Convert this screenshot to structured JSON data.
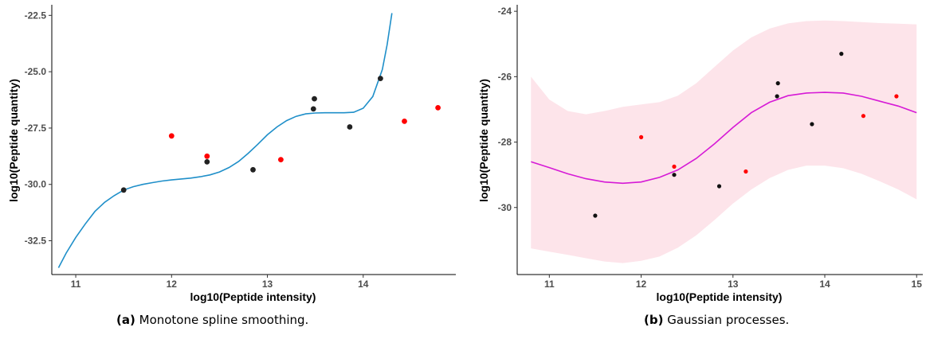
{
  "chart_data": [
    {
      "type": "scatter",
      "caption_label": "(a)",
      "caption_text": "Monotone spline smoothing.",
      "xlabel": "log10(Peptide intensity)",
      "ylabel": "log10(Peptide quantity)",
      "xlim": [
        10.75,
        14.95
      ],
      "ylim": [
        -34.0,
        -22.1
      ],
      "x_ticks": [
        11,
        12,
        13,
        14
      ],
      "x_tick_labels": [
        "11",
        "12",
        "13",
        "14"
      ],
      "y_ticks": [
        -32.5,
        -30.0,
        -27.5,
        -25.0,
        -22.5
      ],
      "y_tick_labels": [
        "-32.5",
        "-30.0",
        "-27.5",
        "-25.0",
        "-22.5"
      ],
      "grid": false,
      "series": [
        {
          "color": "#222222",
          "points": [
            [
              11.5,
              -30.25
            ],
            [
              12.37,
              -29.0
            ],
            [
              12.85,
              -29.35
            ],
            [
              13.48,
              -26.65
            ],
            [
              13.49,
              -26.2
            ],
            [
              13.86,
              -27.45
            ],
            [
              14.18,
              -25.3
            ]
          ]
        },
        {
          "color": "#ff0000",
          "points": [
            [
              12.0,
              -27.85
            ],
            [
              12.37,
              -28.75
            ],
            [
              13.14,
              -28.9
            ],
            [
              14.43,
              -27.2
            ],
            [
              14.78,
              -26.6
            ]
          ]
        },
        {
          "color": "#1f8fc9",
          "kind": "line",
          "points": [
            [
              10.82,
              -33.7
            ],
            [
              10.9,
              -33.05
            ],
            [
              11.0,
              -32.35
            ],
            [
              11.1,
              -31.75
            ],
            [
              11.2,
              -31.2
            ],
            [
              11.3,
              -30.8
            ],
            [
              11.4,
              -30.5
            ],
            [
              11.5,
              -30.25
            ],
            [
              11.6,
              -30.1
            ],
            [
              11.7,
              -30.0
            ],
            [
              11.8,
              -29.92
            ],
            [
              11.9,
              -29.85
            ],
            [
              12.0,
              -29.8
            ],
            [
              12.1,
              -29.76
            ],
            [
              12.2,
              -29.72
            ],
            [
              12.3,
              -29.66
            ],
            [
              12.4,
              -29.58
            ],
            [
              12.5,
              -29.45
            ],
            [
              12.6,
              -29.25
            ],
            [
              12.7,
              -28.98
            ],
            [
              12.8,
              -28.62
            ],
            [
              12.9,
              -28.22
            ],
            [
              13.0,
              -27.8
            ],
            [
              13.1,
              -27.45
            ],
            [
              13.2,
              -27.17
            ],
            [
              13.3,
              -26.98
            ],
            [
              13.4,
              -26.87
            ],
            [
              13.5,
              -26.83
            ],
            [
              13.6,
              -26.82
            ],
            [
              13.7,
              -26.82
            ],
            [
              13.8,
              -26.82
            ],
            [
              13.9,
              -26.8
            ],
            [
              14.0,
              -26.62
            ],
            [
              14.1,
              -26.1
            ],
            [
              14.2,
              -24.9
            ],
            [
              14.25,
              -23.8
            ],
            [
              14.3,
              -22.4
            ]
          ]
        }
      ]
    },
    {
      "type": "scatter",
      "caption_label": "(b)",
      "caption_text": "Gaussian processes.",
      "xlabel": "log10(Peptide intensity)",
      "ylabel": "log10(Peptide quantity)",
      "xlim": [
        10.65,
        15.05
      ],
      "ylim": [
        -32.05,
        -23.85
      ],
      "x_ticks": [
        11,
        12,
        13,
        14,
        15
      ],
      "x_tick_labels": [
        "11",
        "12",
        "13",
        "14",
        "15"
      ],
      "y_ticks": [
        -30,
        -28,
        -26,
        -24
      ],
      "y_tick_labels": [
        "-30",
        "-28",
        "-26",
        "-24"
      ],
      "grid": false,
      "series": [
        {
          "color": "#111111",
          "points": [
            [
              11.5,
              -30.25
            ],
            [
              12.36,
              -29.0
            ],
            [
              12.85,
              -29.35
            ],
            [
              13.48,
              -26.6
            ],
            [
              13.49,
              -26.2
            ],
            [
              13.86,
              -27.45
            ],
            [
              14.18,
              -25.3
            ]
          ]
        },
        {
          "color": "#ff0000",
          "points": [
            [
              12.0,
              -27.85
            ],
            [
              12.36,
              -28.75
            ],
            [
              13.14,
              -28.9
            ],
            [
              14.42,
              -27.2
            ],
            [
              14.78,
              -26.6
            ]
          ]
        },
        {
          "color": "#d61ad6",
          "kind": "line",
          "points": [
            [
              10.8,
              -28.6
            ],
            [
              11.0,
              -28.78
            ],
            [
              11.2,
              -28.97
            ],
            [
              11.4,
              -29.12
            ],
            [
              11.6,
              -29.22
            ],
            [
              11.8,
              -29.26
            ],
            [
              12.0,
              -29.22
            ],
            [
              12.2,
              -29.08
            ],
            [
              12.4,
              -28.85
            ],
            [
              12.6,
              -28.5
            ],
            [
              12.8,
              -28.05
            ],
            [
              13.0,
              -27.55
            ],
            [
              13.2,
              -27.1
            ],
            [
              13.4,
              -26.78
            ],
            [
              13.6,
              -26.58
            ],
            [
              13.8,
              -26.5
            ],
            [
              14.0,
              -26.48
            ],
            [
              14.2,
              -26.5
            ],
            [
              14.4,
              -26.6
            ],
            [
              14.6,
              -26.75
            ],
            [
              14.8,
              -26.9
            ],
            [
              15.0,
              -27.1
            ]
          ]
        },
        {
          "color": "#fde4ea",
          "kind": "band",
          "points": [
            [
              10.8,
              -26.0,
              -31.25
            ],
            [
              11.0,
              -26.7,
              -31.35
            ],
            [
              11.2,
              -27.05,
              -31.45
            ],
            [
              11.4,
              -27.15,
              -31.55
            ],
            [
              11.6,
              -27.05,
              -31.65
            ],
            [
              11.8,
              -26.92,
              -31.7
            ],
            [
              12.0,
              -26.85,
              -31.63
            ],
            [
              12.2,
              -26.78,
              -31.5
            ],
            [
              12.4,
              -26.58,
              -31.23
            ],
            [
              12.6,
              -26.2,
              -30.85
            ],
            [
              12.8,
              -25.7,
              -30.38
            ],
            [
              13.0,
              -25.2,
              -29.88
            ],
            [
              13.2,
              -24.8,
              -29.45
            ],
            [
              13.4,
              -24.53,
              -29.1
            ],
            [
              13.6,
              -24.37,
              -28.85
            ],
            [
              13.8,
              -24.3,
              -28.72
            ],
            [
              14.0,
              -24.28,
              -28.72
            ],
            [
              14.2,
              -24.3,
              -28.8
            ],
            [
              14.4,
              -24.33,
              -28.97
            ],
            [
              14.6,
              -24.36,
              -29.2
            ],
            [
              14.8,
              -24.38,
              -29.45
            ],
            [
              15.0,
              -24.4,
              -29.75
            ]
          ]
        }
      ]
    }
  ]
}
